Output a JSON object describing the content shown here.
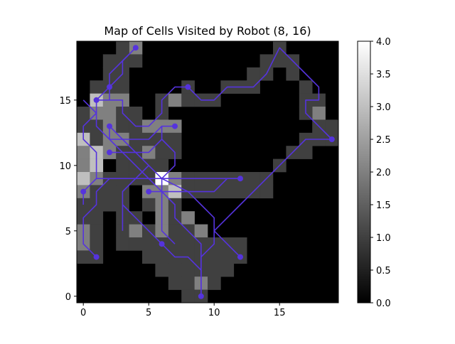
{
  "chart_data": {
    "type": "heatmap",
    "title": "Map of Cells Visited by Robot (8, 16)",
    "xlabel": "",
    "ylabel": "",
    "xlim": [
      -0.5,
      19.5
    ],
    "ylim": [
      -0.5,
      19.5
    ],
    "x_ticks": [
      0,
      5,
      10,
      15
    ],
    "y_ticks": [
      0,
      5,
      10,
      15
    ],
    "colormap": "gray",
    "colorbar": {
      "min": 0.0,
      "max": 4.0,
      "ticks": [
        "0.0",
        "0.5",
        "1.0",
        "1.5",
        "2.0",
        "2.5",
        "3.0",
        "3.5",
        "4.0"
      ]
    },
    "path_color": "#5533dd",
    "cells": [
      [
        4,
        19,
        2
      ],
      [
        3,
        19,
        1
      ],
      [
        2,
        18,
        1
      ],
      [
        3,
        18,
        1
      ],
      [
        4,
        18,
        1
      ],
      [
        2,
        17,
        1
      ],
      [
        3,
        17,
        1
      ],
      [
        1,
        16,
        1
      ],
      [
        2,
        16,
        1
      ],
      [
        3,
        16,
        1
      ],
      [
        8,
        16,
        1
      ],
      [
        1,
        15,
        3
      ],
      [
        2,
        15,
        2
      ],
      [
        3,
        15,
        2
      ],
      [
        6,
        15,
        1
      ],
      [
        7,
        15,
        2
      ],
      [
        8,
        15,
        1
      ],
      [
        9,
        15,
        1
      ],
      [
        10,
        15,
        1
      ],
      [
        0,
        14,
        1
      ],
      [
        1,
        14,
        2
      ],
      [
        2,
        14,
        2
      ],
      [
        3,
        14,
        1
      ],
      [
        4,
        14,
        1
      ],
      [
        6,
        14,
        1
      ],
      [
        0,
        13,
        1
      ],
      [
        1,
        13,
        1
      ],
      [
        2,
        13,
        2
      ],
      [
        3,
        13,
        1
      ],
      [
        4,
        13,
        1
      ],
      [
        5,
        13,
        2
      ],
      [
        6,
        13,
        2
      ],
      [
        7,
        13,
        2
      ],
      [
        0,
        12,
        3
      ],
      [
        1,
        12,
        1
      ],
      [
        2,
        12,
        2
      ],
      [
        3,
        12,
        2
      ],
      [
        4,
        12,
        1
      ],
      [
        5,
        12,
        1
      ],
      [
        6,
        12,
        1
      ],
      [
        7,
        12,
        1
      ],
      [
        0,
        11,
        2
      ],
      [
        1,
        11,
        3
      ],
      [
        2,
        11,
        2
      ],
      [
        3,
        11,
        1
      ],
      [
        4,
        11,
        1
      ],
      [
        5,
        11,
        2
      ],
      [
        6,
        11,
        1
      ],
      [
        7,
        11,
        1
      ],
      [
        0,
        10,
        2
      ],
      [
        1,
        10,
        3
      ],
      [
        3,
        10,
        1
      ],
      [
        4,
        10,
        1
      ],
      [
        5,
        10,
        1
      ],
      [
        6,
        10,
        1
      ],
      [
        0,
        9,
        3
      ],
      [
        1,
        9,
        2
      ],
      [
        2,
        9,
        1
      ],
      [
        3,
        9,
        1
      ],
      [
        4,
        9,
        1
      ],
      [
        5,
        9,
        1
      ],
      [
        6,
        9,
        4
      ],
      [
        7,
        9,
        2
      ],
      [
        8,
        9,
        1
      ],
      [
        9,
        9,
        1
      ],
      [
        10,
        9,
        1
      ],
      [
        11,
        9,
        1
      ],
      [
        12,
        9,
        1
      ],
      [
        0,
        8,
        2
      ],
      [
        1,
        8,
        1
      ],
      [
        2,
        8,
        1
      ],
      [
        3,
        8,
        1
      ],
      [
        5,
        8,
        2
      ],
      [
        6,
        8,
        2
      ],
      [
        7,
        8,
        3
      ],
      [
        8,
        8,
        1
      ],
      [
        9,
        8,
        1
      ],
      [
        10,
        8,
        1
      ],
      [
        11,
        8,
        1
      ],
      [
        0,
        7,
        1
      ],
      [
        1,
        7,
        1
      ],
      [
        2,
        7,
        1
      ],
      [
        3,
        7,
        1
      ],
      [
        5,
        7,
        1
      ],
      [
        6,
        7,
        2
      ],
      [
        7,
        7,
        1
      ],
      [
        0,
        6,
        1
      ],
      [
        1,
        6,
        1
      ],
      [
        3,
        6,
        1
      ],
      [
        4,
        6,
        1
      ],
      [
        6,
        6,
        2
      ],
      [
        7,
        6,
        1
      ],
      [
        8,
        6,
        2
      ],
      [
        0,
        5,
        2
      ],
      [
        1,
        5,
        1
      ],
      [
        3,
        5,
        1
      ],
      [
        4,
        5,
        2
      ],
      [
        5,
        5,
        1
      ],
      [
        6,
        5,
        2
      ],
      [
        7,
        5,
        1
      ],
      [
        8,
        5,
        1
      ],
      [
        9,
        5,
        2
      ],
      [
        0,
        4,
        2
      ],
      [
        1,
        4,
        1
      ],
      [
        3,
        4,
        1
      ],
      [
        4,
        4,
        1
      ],
      [
        5,
        4,
        1
      ],
      [
        6,
        4,
        1
      ],
      [
        7,
        4,
        1
      ],
      [
        8,
        4,
        1
      ],
      [
        9,
        4,
        1
      ],
      [
        10,
        4,
        1
      ],
      [
        11,
        4,
        1
      ],
      [
        12,
        4,
        1
      ],
      [
        0,
        3,
        1
      ],
      [
        1,
        3,
        1
      ],
      [
        5,
        3,
        1
      ],
      [
        6,
        3,
        1
      ],
      [
        7,
        3,
        1
      ],
      [
        8,
        3,
        1
      ],
      [
        9,
        3,
        1
      ],
      [
        10,
        3,
        1
      ],
      [
        11,
        3,
        1
      ],
      [
        12,
        3,
        1
      ],
      [
        6,
        2,
        1
      ],
      [
        7,
        2,
        1
      ],
      [
        8,
        2,
        1
      ],
      [
        9,
        2,
        1
      ],
      [
        10,
        2,
        1
      ],
      [
        11,
        2,
        1
      ],
      [
        7,
        1,
        1
      ],
      [
        8,
        1,
        1
      ],
      [
        9,
        1,
        2
      ],
      [
        10,
        1,
        1
      ],
      [
        8,
        0,
        1
      ],
      [
        9,
        0,
        1
      ],
      [
        11,
        9,
        1
      ],
      [
        12,
        9,
        1
      ],
      [
        13,
        9,
        1
      ],
      [
        12,
        8,
        1
      ],
      [
        13,
        8,
        1
      ],
      [
        14,
        8,
        1
      ],
      [
        11,
        16,
        1
      ],
      [
        12,
        16,
        1
      ],
      [
        13,
        16,
        1
      ],
      [
        13,
        17,
        1
      ],
      [
        14,
        17,
        1
      ],
      [
        14,
        18,
        1
      ],
      [
        15,
        18,
        1
      ],
      [
        15,
        19,
        1
      ],
      [
        16,
        18,
        1
      ],
      [
        16,
        17,
        1
      ],
      [
        17,
        16,
        1
      ],
      [
        17,
        15,
        1
      ],
      [
        18,
        15,
        1
      ],
      [
        18,
        14,
        2
      ],
      [
        17,
        14,
        1
      ],
      [
        18,
        13,
        1
      ],
      [
        19,
        13,
        1
      ],
      [
        19,
        12,
        1
      ],
      [
        18,
        12,
        1
      ],
      [
        17,
        12,
        1
      ],
      [
        17,
        11,
        1
      ],
      [
        16,
        11,
        1
      ],
      [
        15,
        10,
        1
      ],
      [
        14,
        9,
        1
      ],
      [
        13,
        8,
        1
      ]
    ],
    "paths": [
      {
        "points": [
          [
            4,
            19
          ],
          [
            2,
            17
          ],
          [
            2,
            16
          ],
          [
            1,
            15
          ],
          [
            1,
            14
          ],
          [
            0,
            13
          ],
          [
            0,
            12
          ],
          [
            1,
            11
          ],
          [
            1,
            9
          ],
          [
            0,
            8
          ],
          [
            0,
            7
          ]
        ]
      },
      {
        "points": [
          [
            8,
            16
          ],
          [
            7,
            16
          ],
          [
            6,
            15
          ],
          [
            6,
            14
          ],
          [
            5,
            13
          ],
          [
            4,
            13
          ],
          [
            3,
            14
          ],
          [
            3,
            15
          ],
          [
            2,
            15
          ],
          [
            1,
            15
          ]
        ]
      },
      {
        "points": [
          [
            7,
            13
          ],
          [
            6,
            13
          ],
          [
            6,
            12
          ],
          [
            7,
            11
          ],
          [
            7,
            10
          ],
          [
            6,
            9
          ],
          [
            5,
            9
          ],
          [
            4,
            9
          ],
          [
            3,
            9
          ],
          [
            2,
            9
          ],
          [
            1,
            9
          ]
        ]
      },
      {
        "points": [
          [
            2,
            13
          ],
          [
            2,
            12
          ],
          [
            3,
            12
          ],
          [
            5,
            12
          ],
          [
            6,
            13
          ]
        ]
      },
      {
        "points": [
          [
            2,
            11
          ],
          [
            3,
            11
          ],
          [
            5,
            11
          ],
          [
            6,
            12
          ]
        ]
      },
      {
        "points": [
          [
            12,
            9
          ],
          [
            11,
            9
          ],
          [
            10,
            9
          ],
          [
            9,
            9
          ],
          [
            8,
            9
          ],
          [
            7,
            9
          ],
          [
            6,
            9
          ],
          [
            6,
            8
          ],
          [
            6,
            7
          ],
          [
            6,
            6
          ],
          [
            6,
            5
          ],
          [
            7,
            4
          ]
        ]
      },
      {
        "points": [
          [
            5,
            8
          ],
          [
            6,
            8
          ],
          [
            7,
            8
          ],
          [
            10,
            8
          ],
          [
            11,
            9
          ],
          [
            12,
            9
          ]
        ]
      },
      {
        "points": [
          [
            1,
            3
          ],
          [
            0,
            4
          ],
          [
            0,
            6
          ],
          [
            1,
            7
          ],
          [
            1,
            8
          ],
          [
            2,
            9
          ]
        ]
      },
      {
        "points": [
          [
            9,
            0
          ],
          [
            9,
            4
          ],
          [
            8,
            5
          ],
          [
            7,
            6
          ],
          [
            7,
            7
          ],
          [
            6,
            8
          ],
          [
            5,
            9
          ],
          [
            4,
            10
          ],
          [
            3,
            11
          ],
          [
            2,
            12
          ],
          [
            1,
            13
          ],
          [
            1,
            14
          ],
          [
            0,
            15
          ]
        ]
      },
      {
        "points": [
          [
            6,
            4
          ],
          [
            7,
            3
          ],
          [
            8,
            3
          ],
          [
            9,
            2
          ],
          [
            9,
            1
          ],
          [
            9,
            0
          ]
        ]
      },
      {
        "points": [
          [
            12,
            3
          ],
          [
            10,
            5
          ],
          [
            10,
            6
          ],
          [
            9,
            7
          ],
          [
            8,
            8
          ],
          [
            6,
            9
          ],
          [
            5,
            10
          ],
          [
            4,
            11
          ],
          [
            3,
            12
          ],
          [
            2,
            13
          ]
        ]
      },
      {
        "points": [
          [
            8,
            16
          ],
          [
            9,
            15
          ],
          [
            10,
            15
          ],
          [
            11,
            16
          ],
          [
            13,
            16
          ],
          [
            14,
            17
          ],
          [
            15,
            19
          ],
          [
            16,
            18
          ],
          [
            17,
            17
          ],
          [
            18,
            16
          ],
          [
            18,
            15
          ],
          [
            17,
            15
          ],
          [
            17,
            14
          ],
          [
            18,
            13
          ],
          [
            19,
            12
          ],
          [
            17,
            12
          ],
          [
            16,
            11
          ],
          [
            14,
            9
          ],
          [
            12,
            7
          ],
          [
            11,
            6
          ],
          [
            10,
            5
          ],
          [
            10,
            4
          ],
          [
            9,
            3
          ],
          [
            9,
            0
          ]
        ]
      },
      {
        "points": [
          [
            3,
            5
          ],
          [
            3,
            8
          ],
          [
            4,
            9
          ],
          [
            5,
            10
          ]
        ]
      },
      {
        "points": [
          [
            6,
            4
          ],
          [
            5,
            5
          ],
          [
            4,
            6
          ],
          [
            3,
            7
          ]
        ]
      },
      {
        "points": [
          [
            4,
            19
          ],
          [
            3,
            18
          ],
          [
            3,
            17
          ],
          [
            2,
            16
          ],
          [
            2,
            15
          ]
        ]
      }
    ],
    "markers": [
      [
        4,
        19
      ],
      [
        2,
        16
      ],
      [
        8,
        16
      ],
      [
        1,
        15
      ],
      [
        2,
        13
      ],
      [
        7,
        13
      ],
      [
        2,
        11
      ],
      [
        0,
        8
      ],
      [
        5,
        8
      ],
      [
        12,
        9
      ],
      [
        6,
        4
      ],
      [
        1,
        3
      ],
      [
        12,
        3
      ],
      [
        9,
        0
      ],
      [
        19,
        12
      ]
    ]
  }
}
